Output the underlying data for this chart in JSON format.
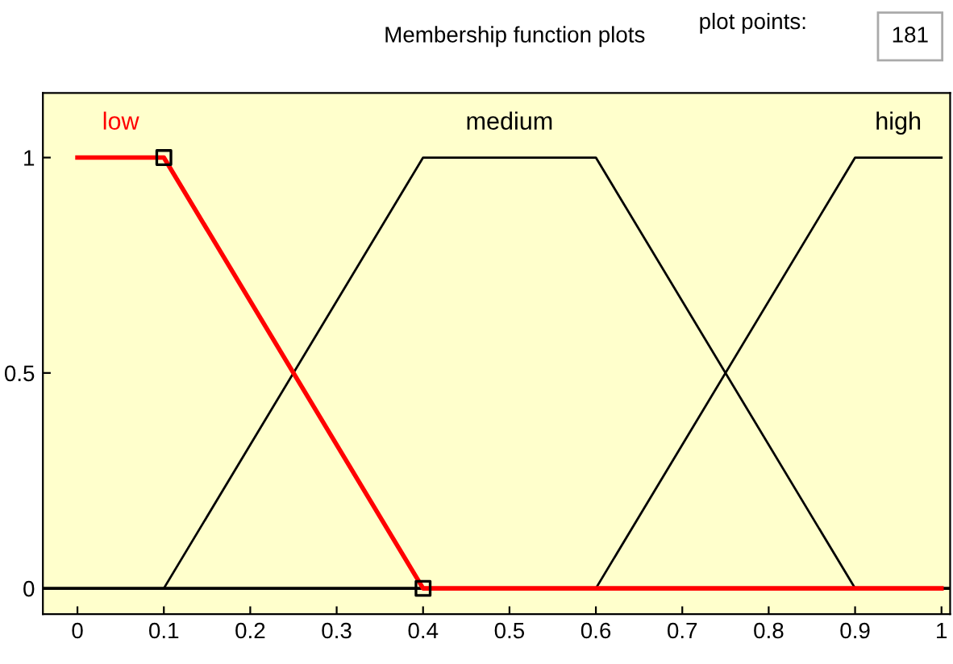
{
  "chart_data": {
    "type": "line",
    "title": "Membership function plots",
    "annotations": [
      "plot points:",
      "181"
    ],
    "series": [
      {
        "name": "low",
        "color": "#ff0000",
        "x": [
          0,
          0.1,
          0.4,
          1
        ],
        "values": [
          1,
          1,
          0,
          0
        ]
      },
      {
        "name": "medium",
        "color": "#000000",
        "x": [
          0.1,
          0.4,
          0.6,
          0.9
        ],
        "values": [
          0,
          1,
          1,
          0
        ]
      },
      {
        "name": "high",
        "color": "#000000",
        "x": [
          0.6,
          0.9,
          1
        ],
        "values": [
          0,
          1,
          1
        ]
      },
      {
        "type": "scatter",
        "marker": "square",
        "color": "#000000",
        "x": [
          0.1,
          0.4
        ],
        "values": [
          1,
          0
        ]
      }
    ],
    "ref_lines": [
      {
        "axis": "y",
        "value": 0,
        "color": "#000000"
      }
    ],
    "xlim": [
      -0.04,
      1.01
    ],
    "ylim": [
      -0.06,
      1.15
    ],
    "xticks": [
      0,
      0.1,
      0.2,
      0.3,
      0.4,
      0.5,
      0.6,
      0.7,
      0.8,
      0.9,
      1
    ],
    "yticks": [
      0,
      0.5,
      1
    ],
    "grid": false,
    "legend": false
  }
}
